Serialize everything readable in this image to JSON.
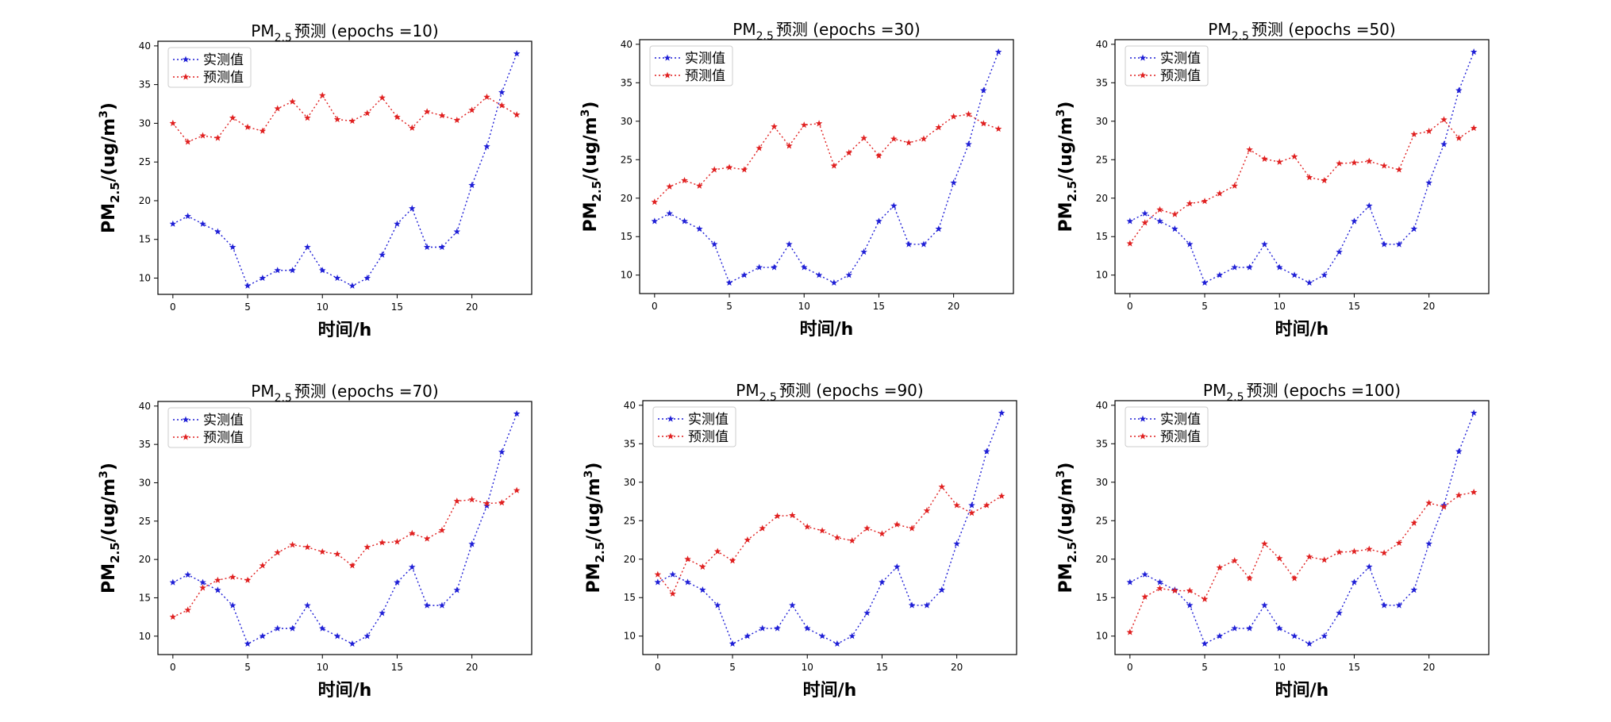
{
  "figure": {
    "background": "#ffffff",
    "series_colors": {
      "actual": "#1f1fd6",
      "predicted": "#e02020"
    }
  },
  "chart_data": [
    {
      "type": "line",
      "title_prefix": "PM",
      "title_sub": "2.5",
      "title_suffix": "预测 (epochs =10)",
      "xlabel": "时间/h",
      "ylabel_prefix": "PM",
      "ylabel_sub": "2.5",
      "ylabel_mid": "/(ug/m",
      "ylabel_sup": "3",
      "ylabel_end": ")",
      "xlim": [
        -1,
        24
      ],
      "ylim": [
        7.9,
        40.6
      ],
      "xticks": [
        0,
        5,
        10,
        15,
        20
      ],
      "yticks": [
        10,
        15,
        20,
        25,
        30,
        35,
        40
      ],
      "legend": "top-left",
      "grid": false,
      "x": [
        0,
        1,
        2,
        3,
        4,
        5,
        6,
        7,
        8,
        9,
        10,
        11,
        12,
        13,
        14,
        15,
        16,
        17,
        18,
        19,
        20,
        21,
        22,
        23
      ],
      "series": [
        {
          "name": "实测值",
          "color": "#1f1fd6",
          "values": [
            17,
            18,
            17,
            16,
            14,
            9,
            10,
            11,
            11,
            14,
            11,
            10,
            9,
            10,
            13,
            17,
            19,
            14,
            14,
            16,
            22,
            27,
            34,
            39
          ]
        },
        {
          "name": "预测值",
          "color": "#e02020",
          "values": [
            30,
            27.6,
            28.4,
            28.1,
            30.7,
            29.5,
            29,
            31.9,
            32.8,
            30.7,
            33.6,
            30.5,
            30.3,
            31.3,
            33.3,
            30.8,
            29.4,
            31.5,
            31,
            30.4,
            31.7,
            33.4,
            32.3,
            31.1
          ]
        }
      ]
    },
    {
      "type": "line",
      "title_prefix": "PM",
      "title_sub": "2.5",
      "title_suffix": "预测 (epochs =30)",
      "xlabel": "时间/h",
      "ylabel_prefix": "PM",
      "ylabel_sub": "2.5",
      "ylabel_mid": "/(ug/m",
      "ylabel_sup": "3",
      "ylabel_end": ")",
      "xlim": [
        -1,
        24
      ],
      "ylim": [
        7.6,
        40.6
      ],
      "xticks": [
        0,
        5,
        10,
        15,
        20
      ],
      "yticks": [
        10,
        15,
        20,
        25,
        30,
        35,
        40
      ],
      "legend": "top-left",
      "grid": false,
      "x": [
        0,
        1,
        2,
        3,
        4,
        5,
        6,
        7,
        8,
        9,
        10,
        11,
        12,
        13,
        14,
        15,
        16,
        17,
        18,
        19,
        20,
        21,
        22,
        23
      ],
      "series": [
        {
          "name": "实测值",
          "color": "#1f1fd6",
          "values": [
            17,
            18,
            17,
            16,
            14,
            9,
            10,
            11,
            11,
            14,
            11,
            10,
            9,
            10,
            13,
            17,
            19,
            14,
            14,
            16,
            22,
            27,
            34,
            39
          ]
        },
        {
          "name": "预测值",
          "color": "#e02020",
          "values": [
            19.5,
            21.5,
            22.3,
            21.6,
            23.7,
            24,
            23.7,
            26.5,
            29.3,
            26.8,
            29.5,
            29.7,
            24.2,
            25.9,
            27.8,
            25.5,
            27.7,
            27.2,
            27.7,
            29.2,
            30.6,
            30.9,
            29.7,
            29
          ]
        }
      ]
    },
    {
      "type": "line",
      "title_prefix": "PM",
      "title_sub": "2.5",
      "title_suffix": "预测 (epochs =50)",
      "xlabel": "时间/h",
      "ylabel_prefix": "PM",
      "ylabel_sub": "2.5",
      "ylabel_mid": "/(ug/m",
      "ylabel_sup": "3",
      "ylabel_end": ")",
      "xlim": [
        -1,
        24
      ],
      "ylim": [
        7.6,
        40.6
      ],
      "xticks": [
        0,
        5,
        10,
        15,
        20
      ],
      "yticks": [
        10,
        15,
        20,
        25,
        30,
        35,
        40
      ],
      "legend": "top-left",
      "grid": false,
      "x": [
        0,
        1,
        2,
        3,
        4,
        5,
        6,
        7,
        8,
        9,
        10,
        11,
        12,
        13,
        14,
        15,
        16,
        17,
        18,
        19,
        20,
        21,
        22,
        23
      ],
      "series": [
        {
          "name": "实测值",
          "color": "#1f1fd6",
          "values": [
            17,
            18,
            17,
            16,
            14,
            9,
            10,
            11,
            11,
            14,
            11,
            10,
            9,
            10,
            13,
            17,
            19,
            14,
            14,
            16,
            22,
            27,
            34,
            39
          ]
        },
        {
          "name": "预测值",
          "color": "#e02020",
          "values": [
            14.1,
            16.8,
            18.5,
            17.9,
            19.3,
            19.6,
            20.6,
            21.6,
            26.3,
            25.1,
            24.7,
            25.4,
            22.7,
            22.3,
            24.5,
            24.6,
            24.8,
            24.2,
            23.7,
            28.3,
            28.7,
            30.2,
            27.8,
            29.1
          ]
        }
      ]
    },
    {
      "type": "line",
      "title_prefix": "PM",
      "title_sub": "2.5",
      "title_suffix": "预测 (epochs =70)",
      "xlabel": "时间/h",
      "ylabel_prefix": "PM",
      "ylabel_sub": "2.5",
      "ylabel_mid": "/(ug/m",
      "ylabel_sup": "3",
      "ylabel_end": ")",
      "xlim": [
        -1,
        24
      ],
      "ylim": [
        7.6,
        40.6
      ],
      "xticks": [
        0,
        5,
        10,
        15,
        20
      ],
      "yticks": [
        10,
        15,
        20,
        25,
        30,
        35,
        40
      ],
      "legend": "top-left",
      "grid": false,
      "x": [
        0,
        1,
        2,
        3,
        4,
        5,
        6,
        7,
        8,
        9,
        10,
        11,
        12,
        13,
        14,
        15,
        16,
        17,
        18,
        19,
        20,
        21,
        22,
        23
      ],
      "series": [
        {
          "name": "实测值",
          "color": "#1f1fd6",
          "values": [
            17,
            18,
            17,
            16,
            14,
            9,
            10,
            11,
            11,
            14,
            11,
            10,
            9,
            10,
            13,
            17,
            19,
            14,
            14,
            16,
            22,
            27,
            34,
            39
          ]
        },
        {
          "name": "预测值",
          "color": "#e02020",
          "values": [
            12.5,
            13.4,
            16.3,
            17.3,
            17.7,
            17.3,
            19.2,
            20.9,
            21.9,
            21.6,
            21,
            20.7,
            19.2,
            21.6,
            22.2,
            22.3,
            23.4,
            22.7,
            23.8,
            27.6,
            27.8,
            27.3,
            27.4,
            29
          ]
        }
      ]
    },
    {
      "type": "line",
      "title_prefix": "PM",
      "title_sub": "2.5",
      "title_suffix": "预测 (epochs =90)",
      "xlabel": "时间/h",
      "ylabel_prefix": "PM",
      "ylabel_sub": "2.5",
      "ylabel_mid": "/(ug/m",
      "ylabel_sup": "3",
      "ylabel_end": ")",
      "xlim": [
        -1,
        24
      ],
      "ylim": [
        7.6,
        40.6
      ],
      "xticks": [
        0,
        5,
        10,
        15,
        20
      ],
      "yticks": [
        10,
        15,
        20,
        25,
        30,
        35,
        40
      ],
      "legend": "top-left",
      "grid": false,
      "x": [
        0,
        1,
        2,
        3,
        4,
        5,
        6,
        7,
        8,
        9,
        10,
        11,
        12,
        13,
        14,
        15,
        16,
        17,
        18,
        19,
        20,
        21,
        22,
        23
      ],
      "series": [
        {
          "name": "实测值",
          "color": "#1f1fd6",
          "values": [
            17,
            18,
            17,
            16,
            14,
            9,
            10,
            11,
            11,
            14,
            11,
            10,
            9,
            10,
            13,
            17,
            19,
            14,
            14,
            16,
            22,
            27,
            34,
            39
          ]
        },
        {
          "name": "预测值",
          "color": "#e02020",
          "values": [
            18,
            15.5,
            20,
            19,
            21,
            19.8,
            22.5,
            24,
            25.6,
            25.7,
            24.2,
            23.7,
            22.8,
            22.4,
            24,
            23.3,
            24.5,
            24,
            26.3,
            29.4,
            27,
            26,
            27,
            28.2
          ]
        }
      ]
    },
    {
      "type": "line",
      "title_prefix": "PM",
      "title_sub": "2.5",
      "title_suffix": "预测 (epochs =100)",
      "xlabel": "时间/h",
      "ylabel_prefix": "PM",
      "ylabel_sub": "2.5",
      "ylabel_mid": "/(ug/m",
      "ylabel_sup": "3",
      "ylabel_end": ")",
      "xlim": [
        -1,
        24
      ],
      "ylim": [
        7.6,
        40.6
      ],
      "xticks": [
        0,
        5,
        10,
        15,
        20
      ],
      "yticks": [
        10,
        15,
        20,
        25,
        30,
        35,
        40
      ],
      "legend": "top-left",
      "grid": false,
      "x": [
        0,
        1,
        2,
        3,
        4,
        5,
        6,
        7,
        8,
        9,
        10,
        11,
        12,
        13,
        14,
        15,
        16,
        17,
        18,
        19,
        20,
        21,
        22,
        23
      ],
      "series": [
        {
          "name": "实测值",
          "color": "#1f1fd6",
          "values": [
            17,
            18,
            17,
            16,
            14,
            9,
            10,
            11,
            11,
            14,
            11,
            10,
            9,
            10,
            13,
            17,
            19,
            14,
            14,
            16,
            22,
            27,
            34,
            39
          ]
        },
        {
          "name": "预测值",
          "color": "#e02020",
          "values": [
            10.5,
            15.1,
            16.2,
            15.9,
            15.9,
            14.8,
            18.9,
            19.8,
            17.5,
            22,
            20.1,
            17.5,
            20.3,
            19.9,
            20.9,
            21,
            21.3,
            20.8,
            22.1,
            24.7,
            27.3,
            26.8,
            28.3,
            28.7
          ]
        }
      ]
    }
  ]
}
